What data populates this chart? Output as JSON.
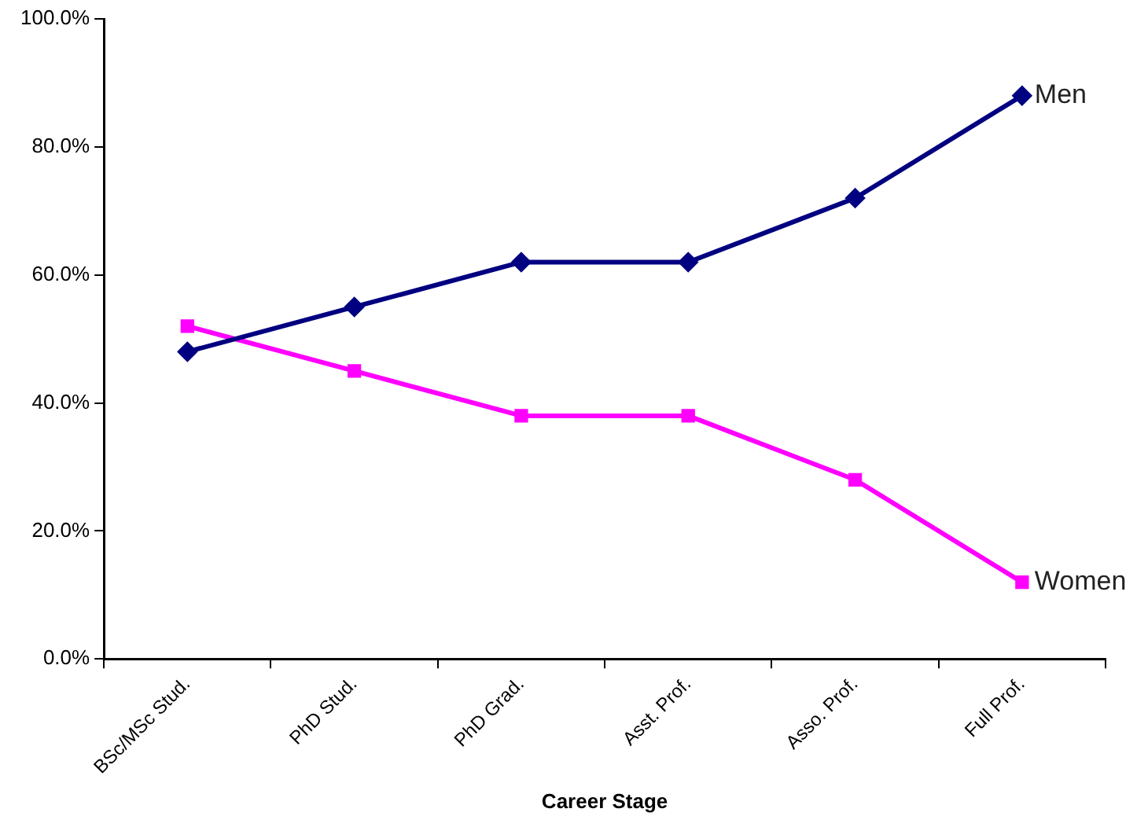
{
  "chart_data": {
    "type": "line",
    "xlabel": "Career Stage",
    "categories": [
      "BSc/MSc Stud.",
      "PhD Stud.",
      "PhD Grad.",
      "Asst. Prof.",
      "Asso. Prof.",
      "Full Prof."
    ],
    "series": [
      {
        "name": "Men",
        "color": "#000080",
        "marker": "diamond",
        "values": [
          48,
          55,
          62,
          62,
          72,
          88
        ]
      },
      {
        "name": "Women",
        "color": "#ff00ff",
        "marker": "square",
        "values": [
          52,
          45,
          38,
          38,
          28,
          12
        ]
      }
    ],
    "ylim": [
      0,
      100
    ],
    "yticks": [
      {
        "value": 0,
        "label": "0.0%"
      },
      {
        "value": 20,
        "label": "20.0%"
      },
      {
        "value": 40,
        "label": "40.0%"
      },
      {
        "value": 60,
        "label": "60.0%"
      },
      {
        "value": 80,
        "label": "80.0%"
      },
      {
        "value": 100,
        "label": "100.0%"
      }
    ],
    "grid": false,
    "legend": false,
    "line_style": "solid"
  }
}
